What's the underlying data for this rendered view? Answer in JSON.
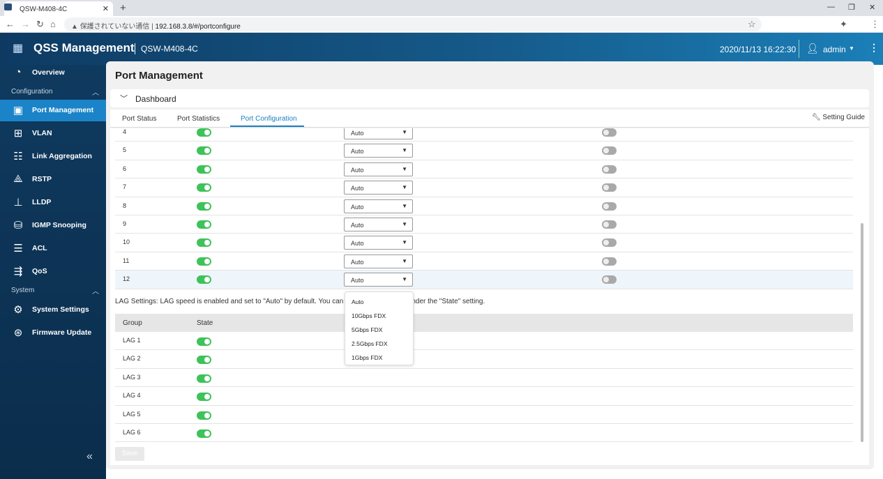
{
  "browser": {
    "tab_title": "QSW-M408-4C",
    "new_tab": "+",
    "insecure_label": "保護されていない通信",
    "url": "192.168.3.8/#/portconfigure"
  },
  "header": {
    "app_title": "QSS Management",
    "model": "QSW-M408-4C",
    "datetime": "2020/11/13  16:22:30",
    "user": "admin"
  },
  "sidebar": {
    "overview": "Overview",
    "sections": [
      {
        "label": "Configuration"
      },
      {
        "label": "System"
      }
    ],
    "items": [
      {
        "label": "Port Management",
        "icon": "port-icon",
        "active": true
      },
      {
        "label": "VLAN",
        "icon": "vlan-icon"
      },
      {
        "label": "Link Aggregation",
        "icon": "link-aggregation-icon"
      },
      {
        "label": "RSTP",
        "icon": "rstp-icon"
      },
      {
        "label": "LLDP",
        "icon": "lldp-icon"
      },
      {
        "label": "IGMP Snooping",
        "icon": "igmp-icon"
      },
      {
        "label": "ACL",
        "icon": "acl-icon"
      },
      {
        "label": "QoS",
        "icon": "qos-icon"
      }
    ],
    "system_items": [
      {
        "label": "System Settings",
        "icon": "gear-icon"
      },
      {
        "label": "Firmware Update",
        "icon": "firmware-icon"
      }
    ]
  },
  "page": {
    "title": "Port Management",
    "dashboard": "Dashboard",
    "tabs": [
      {
        "label": "Port Status"
      },
      {
        "label": "Port Statistics"
      },
      {
        "label": "Port Configuration",
        "active": true
      }
    ],
    "setting_guide": "Setting Guide"
  },
  "ports": [
    {
      "port": "4",
      "state": true,
      "speed": "Auto",
      "flow": false
    },
    {
      "port": "5",
      "state": true,
      "speed": "Auto",
      "flow": false
    },
    {
      "port": "6",
      "state": true,
      "speed": "Auto",
      "flow": false
    },
    {
      "port": "7",
      "state": true,
      "speed": "Auto",
      "flow": false
    },
    {
      "port": "8",
      "state": true,
      "speed": "Auto",
      "flow": false
    },
    {
      "port": "9",
      "state": true,
      "speed": "Auto",
      "flow": false
    },
    {
      "port": "10",
      "state": true,
      "speed": "Auto",
      "flow": false
    },
    {
      "port": "11",
      "state": true,
      "speed": "Auto",
      "flow": false
    },
    {
      "port": "12",
      "state": true,
      "speed": "Auto",
      "flow": false
    }
  ],
  "lag": {
    "note": "LAG Settings: LAG speed is enabled and set to \"Auto\" by default. You can",
    "note_tail": "nder the \"State\" setting.",
    "headers": [
      "Group",
      "State"
    ],
    "rows": [
      {
        "group": "LAG 1",
        "state": true
      },
      {
        "group": "LAG 2",
        "state": true
      },
      {
        "group": "LAG 3",
        "state": true
      },
      {
        "group": "LAG 4",
        "state": true
      },
      {
        "group": "LAG 5",
        "state": true
      },
      {
        "group": "LAG 6",
        "state": true
      }
    ]
  },
  "dropdown": {
    "options": [
      "Auto",
      "10Gbps FDX",
      "5Gbps FDX",
      "2.5Gbps FDX",
      "1Gbps FDX"
    ]
  },
  "save_label": "Save",
  "colors": {
    "accent": "#1a7fc1",
    "toggle_on": "#3ec25a",
    "toggle_off": "#a9a9a9",
    "sidebar": "#0f3a5f"
  }
}
